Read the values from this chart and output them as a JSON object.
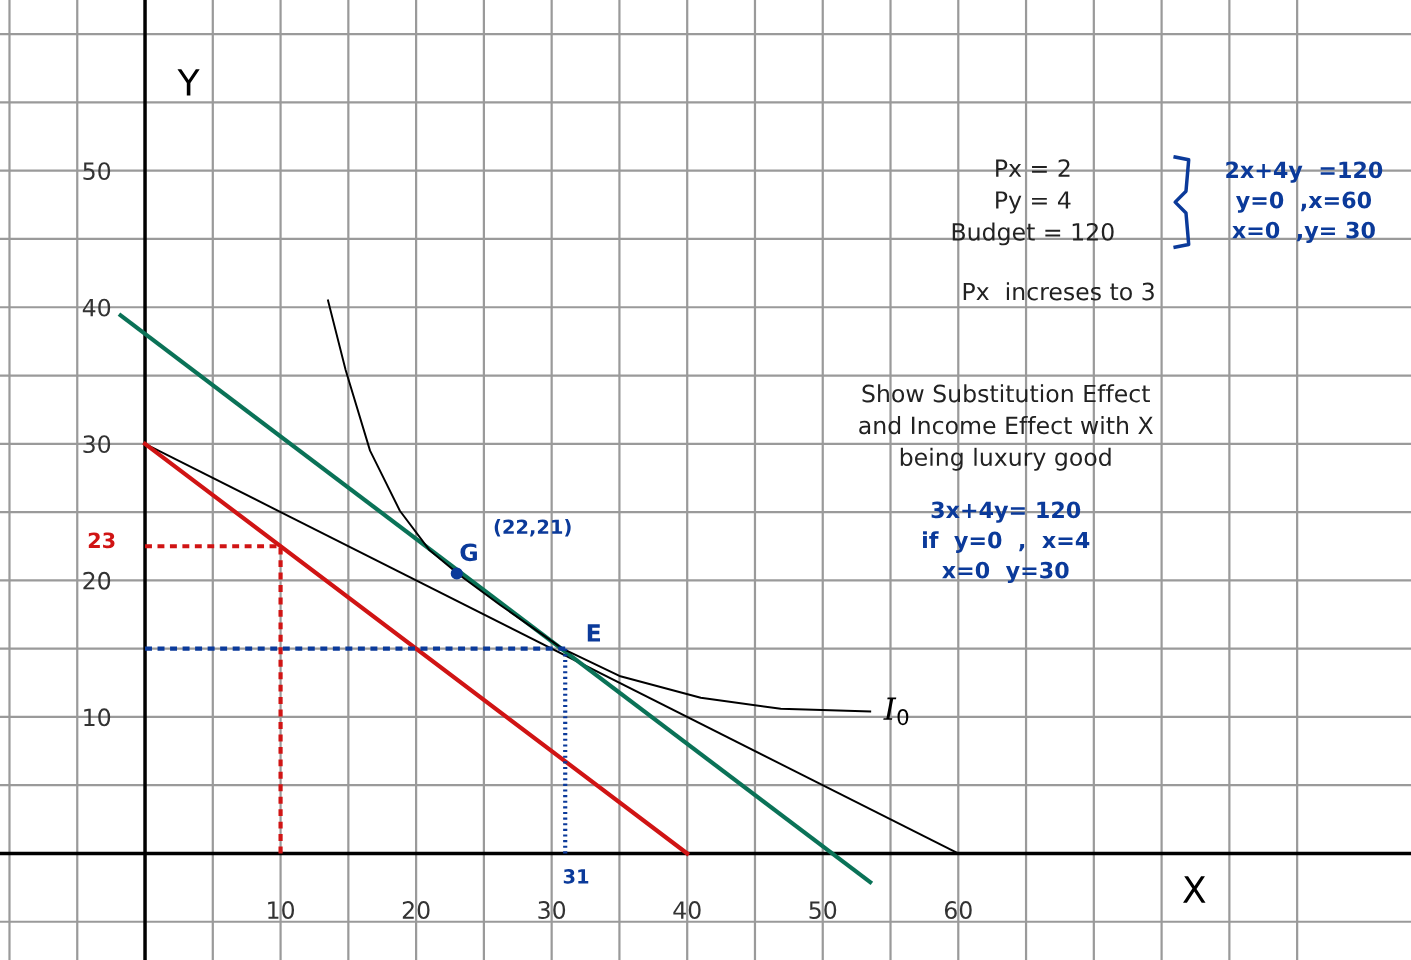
{
  "chart_data": {
    "type": "line",
    "xlabel": "X",
    "ylabel": "Y",
    "xlim": [
      -10.7,
      93.4
    ],
    "ylim": [
      -7.8,
      62.5
    ],
    "xticks": [
      {
        "value": -10,
        "label": null
      },
      {
        "value": -5,
        "label": null
      },
      {
        "value": 0,
        "label": null
      },
      {
        "value": 5,
        "label": null
      },
      10,
      {
        "value": 15,
        "label": null
      },
      20,
      {
        "value": 25,
        "label": null
      },
      30,
      {
        "value": 35,
        "label": null
      },
      40,
      {
        "value": 45,
        "label": null
      },
      50,
      {
        "value": 55,
        "label": null
      },
      60,
      {
        "value": 65,
        "label": null
      },
      {
        "value": 70,
        "label": null
      },
      {
        "value": 75,
        "label": null
      },
      {
        "value": 80,
        "label": null
      },
      {
        "value": 85,
        "label": null
      }
    ],
    "yticks": [
      {
        "value": -5,
        "label": null
      },
      {
        "value": 0,
        "label": null
      },
      {
        "value": 5,
        "label": null
      },
      10,
      {
        "value": 15,
        "label": null
      },
      20,
      {
        "value": 25,
        "label": null
      },
      30,
      {
        "value": 35,
        "label": null
      },
      40,
      {
        "value": 45,
        "label": null
      },
      50,
      {
        "value": 55,
        "label": null
      },
      {
        "value": 60,
        "label": null
      }
    ],
    "grid": true,
    "series": [
      {
        "color": "#000000",
        "x": [
          0,
          60
        ],
        "values": [
          30,
          0
        ]
      },
      {
        "color": "#d01414",
        "x": [
          0,
          40
        ],
        "values": [
          30,
          0
        ]
      },
      {
        "color": "#0a7257",
        "x": [
          -1.8,
          53.5
        ],
        "values": [
          39.4,
          -2.1
        ]
      },
      {
        "name": "I$_{0}$",
        "color": "#000000",
        "x": [
          13.5,
          14.8,
          16.6,
          18.8,
          21,
          23.2,
          26.2,
          30.8,
          35,
          41,
          46.9,
          53.5
        ],
        "values": [
          40.5,
          35.4,
          29.5,
          25.1,
          22.2,
          20.4,
          18.2,
          15,
          13,
          11.4,
          10.6,
          10.4
        ]
      },
      {
        "color": "#d01414",
        "line_style": "dashed",
        "x": [
          10,
          10,
          0
        ],
        "values": [
          0,
          22.5,
          22.5
        ]
      },
      {
        "color": "#0b3a9a",
        "line_style": "dashed",
        "x": [
          0,
          31
        ],
        "values": [
          15,
          15
        ]
      },
      {
        "color": "#0b3a9a",
        "line_style": "dotted",
        "x": [
          31,
          31
        ],
        "values": [
          15,
          0
        ]
      },
      {
        "type": "scatter",
        "color": "#0b3a9a",
        "x": [
          23
        ],
        "values": [
          20.5
        ]
      }
    ],
    "annotations": [
      "Px = 2\nPy = 4\nBudget = 120",
      "Px  increses to 3",
      "Show Substitution Effect\nand Income Effect with X\nbeing luxury good",
      "2x+4y  =120\ny=0  ,x=60\nx=0  ,y= 30",
      "3x+4y= 120\nif  y=0  ,  x=4\nx=0  y=30",
      "(22,21)",
      "G",
      "E",
      "23",
      "31"
    ]
  }
}
